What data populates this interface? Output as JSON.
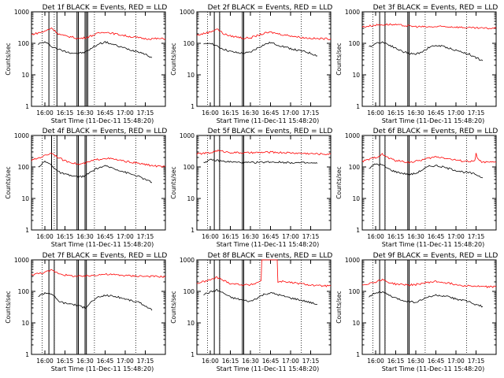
{
  "axes": {
    "ylabel": "Counts/sec",
    "xlabel": "Start Time (11-Dec-11 15:48:20)",
    "xtick_labels": [
      "16:00",
      "16:15",
      "16:30",
      "16:45",
      "17:00",
      "17:15"
    ],
    "ytick_labels": [
      "1",
      "10",
      "100",
      "1000"
    ]
  },
  "colors": {
    "events": "#000000",
    "lld": "#ff0000",
    "markers": "#000000"
  },
  "chart_data": [
    {
      "type": "line",
      "title": "Det 1f BLACK = Events, RED = LLD",
      "xlim_min": [
        0,
        100
      ],
      "y_scale": "log",
      "ylim": [
        1,
        1000
      ],
      "series": [
        {
          "values_x": [
            5,
            10,
            15,
            20,
            25,
            30,
            35,
            40,
            45,
            50,
            55,
            60,
            65,
            70,
            75,
            80,
            85,
            90
          ],
          "values": [
            95,
            110,
            80,
            65,
            55,
            50,
            48,
            52,
            70,
            95,
            110,
            95,
            80,
            70,
            60,
            55,
            45,
            35
          ]
        },
        {
          "values_x": [
            0,
            10,
            15,
            20,
            25,
            30,
            35,
            40,
            45,
            50,
            55,
            60,
            65,
            70,
            75,
            80,
            85,
            90,
            100
          ],
          "values": [
            190,
            240,
            310,
            200,
            170,
            160,
            140,
            150,
            175,
            210,
            230,
            210,
            190,
            175,
            160,
            150,
            140,
            140,
            140
          ]
        }
      ],
      "markers_min": [
        13,
        19,
        34,
        35,
        40,
        41,
        42
      ]
    },
    {
      "type": "line",
      "title": "Det 2f BLACK = Events, RED = LLD",
      "xlim_min": [
        0,
        100
      ],
      "y_scale": "log",
      "ylim": [
        1,
        1000
      ],
      "series": [
        {
          "values_x": [
            5,
            10,
            15,
            20,
            25,
            30,
            35,
            40,
            45,
            50,
            55,
            60,
            65,
            70,
            75,
            80,
            85,
            90
          ],
          "values": [
            90,
            105,
            80,
            65,
            55,
            50,
            48,
            52,
            70,
            90,
            105,
            90,
            78,
            68,
            60,
            55,
            48,
            40
          ]
        },
        {
          "values_x": [
            0,
            10,
            15,
            20,
            25,
            30,
            35,
            40,
            45,
            50,
            55,
            60,
            65,
            70,
            75,
            80,
            85,
            90,
            100
          ],
          "values": [
            180,
            230,
            290,
            200,
            170,
            160,
            145,
            150,
            175,
            205,
            225,
            205,
            185,
            175,
            160,
            150,
            145,
            140,
            140
          ]
        }
      ],
      "markers_min": [
        13,
        17,
        34,
        35
      ]
    },
    {
      "type": "line",
      "title": "Det 3f BLACK = Events, RED = LLD",
      "xlim_min": [
        0,
        100
      ],
      "y_scale": "log",
      "ylim": [
        1,
        1000
      ],
      "series": [
        {
          "values_x": [
            5,
            10,
            15,
            20,
            25,
            30,
            35,
            40,
            45,
            50,
            55,
            60,
            65,
            70,
            75,
            80,
            85,
            90
          ],
          "values": [
            75,
            100,
            110,
            90,
            70,
            55,
            48,
            45,
            55,
            75,
            85,
            80,
            70,
            60,
            52,
            45,
            35,
            28
          ]
        },
        {
          "values_x": [
            0,
            10,
            20,
            30,
            40,
            50,
            60,
            70,
            80,
            90,
            100
          ],
          "values": [
            330,
            380,
            400,
            370,
            340,
            330,
            340,
            330,
            310,
            300,
            300
          ]
        }
      ],
      "markers_min": [
        13,
        17,
        34,
        35
      ]
    },
    {
      "type": "line",
      "title": "Det 4f BLACK = Events, RED = LLD",
      "xlim_min": [
        0,
        100
      ],
      "y_scale": "log",
      "ylim": [
        1,
        1000
      ],
      "series": [
        {
          "values_x": [
            5,
            10,
            15,
            20,
            25,
            30,
            35,
            40,
            45,
            50,
            55,
            60,
            65,
            70,
            75,
            80,
            85,
            90
          ],
          "values": [
            100,
            150,
            115,
            70,
            58,
            52,
            48,
            52,
            72,
            95,
            105,
            95,
            80,
            68,
            58,
            50,
            40,
            32
          ]
        },
        {
          "values_x": [
            0,
            10,
            15,
            20,
            25,
            30,
            35,
            40,
            45,
            50,
            55,
            60,
            65,
            70,
            75,
            80,
            85,
            90,
            100
          ],
          "values": [
            160,
            230,
            280,
            200,
            155,
            140,
            120,
            130,
            155,
            175,
            190,
            180,
            165,
            150,
            140,
            130,
            120,
            110,
            100
          ]
        }
      ],
      "markers_min": [
        15,
        19,
        34,
        35,
        40,
        41
      ]
    },
    {
      "type": "line",
      "title": "Det 5f BLACK = Events, RED = LLD",
      "xlim_min": [
        0,
        100
      ],
      "y_scale": "log",
      "ylim": [
        1,
        1000
      ],
      "series": [
        {
          "values_x": [
            5,
            10,
            15,
            20,
            25,
            30,
            35,
            40,
            45,
            50,
            55,
            60,
            65,
            70,
            75,
            80,
            85,
            90
          ],
          "values": [
            140,
            165,
            160,
            150,
            145,
            140,
            138,
            136,
            140,
            142,
            145,
            142,
            140,
            138,
            136,
            134,
            132,
            130
          ]
        },
        {
          "values_x": [
            0,
            10,
            15,
            20,
            25,
            30,
            35,
            40,
            45,
            50,
            55,
            60,
            65,
            70,
            75,
            80,
            85,
            90,
            100
          ],
          "values": [
            260,
            280,
            330,
            310,
            290,
            285,
            280,
            280,
            285,
            290,
            295,
            290,
            285,
            280,
            275,
            270,
            265,
            260,
            255
          ]
        }
      ],
      "markers_min": [
        13,
        17,
        34,
        35
      ]
    },
    {
      "type": "line",
      "title": "Det 6f BLACK = Events, RED = LLD",
      "xlim_min": [
        0,
        100
      ],
      "y_scale": "log",
      "ylim": [
        1,
        1000
      ],
      "series": [
        {
          "values_x": [
            5,
            10,
            15,
            20,
            25,
            30,
            35,
            40,
            45,
            50,
            55,
            60,
            65,
            70,
            75,
            80,
            85,
            90
          ],
          "values": [
            90,
            125,
            115,
            85,
            70,
            63,
            58,
            62,
            82,
            105,
            110,
            100,
            88,
            78,
            70,
            65,
            58,
            45
          ]
        },
        {
          "values_x": [
            0,
            10,
            15,
            20,
            25,
            30,
            35,
            40,
            45,
            50,
            55,
            60,
            65,
            70,
            75,
            80,
            84,
            85,
            86,
            90,
            100
          ],
          "values": [
            150,
            200,
            250,
            190,
            160,
            150,
            140,
            150,
            170,
            190,
            210,
            200,
            180,
            165,
            155,
            150,
            150,
            270,
            180,
            140,
            140
          ]
        }
      ],
      "markers_min": [
        13,
        17,
        34,
        35
      ]
    },
    {
      "type": "line",
      "title": "Det 7f BLACK = Events, RED = LLD",
      "xlim_min": [
        0,
        100
      ],
      "y_scale": "log",
      "ylim": [
        1,
        1000
      ],
      "series": [
        {
          "values_x": [
            5,
            10,
            15,
            20,
            25,
            30,
            35,
            40,
            45,
            50,
            55,
            60,
            65,
            70,
            75,
            80,
            85,
            90
          ],
          "values": [
            70,
            90,
            85,
            50,
            42,
            40,
            35,
            30,
            48,
            65,
            75,
            72,
            65,
            58,
            50,
            45,
            35,
            25
          ]
        },
        {
          "values_x": [
            0,
            10,
            15,
            20,
            25,
            30,
            35,
            40,
            45,
            50,
            55,
            60,
            65,
            70,
            75,
            80,
            85,
            90,
            100
          ],
          "values": [
            340,
            400,
            470,
            380,
            330,
            310,
            300,
            300,
            320,
            340,
            350,
            340,
            330,
            320,
            310,
            310,
            300,
            300,
            290
          ]
        }
      ],
      "markers_min": [
        13,
        17,
        34,
        35,
        40,
        41
      ]
    },
    {
      "type": "line",
      "title": "Det 8f BLACK = Events, RED = LLD",
      "xlim_min": [
        0,
        100
      ],
      "y_scale": "log",
      "ylim": [
        1,
        1000
      ],
      "series": [
        {
          "values_x": [
            5,
            10,
            15,
            20,
            25,
            30,
            35,
            40,
            45,
            50,
            55,
            60,
            65,
            70,
            75,
            80,
            85,
            90
          ],
          "values": [
            80,
            95,
            110,
            88,
            65,
            58,
            52,
            48,
            62,
            80,
            90,
            80,
            70,
            62,
            56,
            50,
            44,
            38
          ]
        },
        {
          "values_x": [
            0,
            10,
            15,
            20,
            25,
            30,
            35,
            40,
            45,
            48,
            48.5,
            55,
            60,
            60.5,
            65,
            70,
            75,
            80,
            85,
            90,
            100
          ],
          "values": [
            180,
            230,
            280,
            220,
            180,
            170,
            160,
            160,
            190,
            220,
            1000,
            1000,
            1000,
            200,
            210,
            190,
            180,
            170,
            160,
            150,
            150
          ]
        }
      ],
      "markers_min": [
        13,
        17,
        34,
        35
      ]
    },
    {
      "type": "line",
      "title": "Det 9f BLACK = Events, RED = LLD",
      "xlim_min": [
        0,
        100
      ],
      "y_scale": "log",
      "ylim": [
        1,
        1000
      ],
      "series": [
        {
          "values_x": [
            5,
            10,
            15,
            20,
            25,
            30,
            35,
            40,
            45,
            50,
            55,
            60,
            65,
            70,
            75,
            80,
            85,
            90
          ],
          "values": [
            70,
            90,
            95,
            75,
            60,
            52,
            48,
            45,
            55,
            68,
            75,
            72,
            65,
            58,
            52,
            46,
            38,
            33
          ]
        },
        {
          "values_x": [
            0,
            10,
            15,
            20,
            25,
            30,
            35,
            40,
            45,
            50,
            55,
            60,
            65,
            70,
            75,
            80,
            85,
            90,
            100
          ],
          "values": [
            160,
            200,
            240,
            190,
            170,
            165,
            160,
            165,
            180,
            195,
            205,
            195,
            180,
            165,
            155,
            150,
            145,
            140,
            140
          ]
        }
      ],
      "markers_min": [
        13,
        17,
        34,
        35
      ]
    }
  ]
}
